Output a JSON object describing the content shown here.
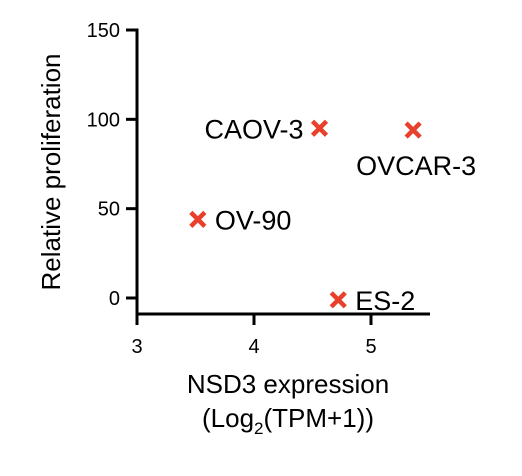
{
  "chart_data": {
    "type": "scatter",
    "ylabel": "Relative proliferation",
    "xlabel_line1": "NSD3 expression",
    "xlabel_line2_prefix": "(Log",
    "xlabel_line2_sub": "2",
    "xlabel_line2_suffix": "(TPM+1))",
    "xlim": [
      3,
      5.6
    ],
    "ylim": [
      -10,
      150
    ],
    "x_ticks": [
      "3",
      "4",
      "5"
    ],
    "y_ticks": [
      "0",
      "50",
      "100",
      "150"
    ],
    "marker_color": "#e8402a",
    "points": [
      {
        "label": "CAOV-3",
        "x": 4.56,
        "y": 95,
        "label_side": "left-above"
      },
      {
        "label": "OVCAR-3",
        "x": 5.36,
        "y": 94,
        "label_side": "below-right"
      },
      {
        "label": "OV-90",
        "x": 3.52,
        "y": 44,
        "label_side": "right"
      },
      {
        "label": "ES-2",
        "x": 4.72,
        "y": -1,
        "label_side": "right"
      }
    ]
  }
}
